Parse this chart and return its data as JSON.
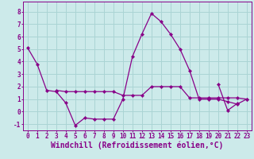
{
  "xlabel": "Windchill (Refroidissement éolien,°C)",
  "xlim": [
    -0.5,
    23.5
  ],
  "ylim": [
    -1.5,
    8.8
  ],
  "yticks": [
    -1,
    0,
    1,
    2,
    3,
    4,
    5,
    6,
    7,
    8
  ],
  "xticks": [
    0,
    1,
    2,
    3,
    4,
    5,
    6,
    7,
    8,
    9,
    10,
    11,
    12,
    13,
    14,
    15,
    16,
    17,
    18,
    19,
    20,
    21,
    22,
    23
  ],
  "background_color": "#cceaea",
  "line_color": "#880088",
  "grid_color": "#aad4d4",
  "series": [
    [
      5.1,
      3.8,
      1.7,
      1.6,
      0.7,
      -1.1,
      -0.5,
      -0.6,
      -0.6,
      -0.6,
      1.0,
      4.4,
      6.2,
      7.85,
      7.2,
      6.2,
      5.0,
      3.3,
      1.0,
      1.0,
      1.0,
      0.8,
      0.6,
      1.0
    ],
    [
      null,
      null,
      null,
      1.7,
      1.6,
      1.6,
      1.6,
      1.6,
      1.6,
      1.6,
      1.3,
      1.3,
      1.3,
      2.0,
      2.0,
      2.0,
      2.0,
      1.1,
      1.1,
      1.1,
      1.1,
      1.1,
      1.1,
      1.0
    ],
    [
      null,
      null,
      null,
      null,
      null,
      null,
      null,
      null,
      null,
      null,
      null,
      null,
      null,
      null,
      null,
      null,
      null,
      null,
      null,
      null,
      2.2,
      0.1,
      0.65,
      null
    ]
  ],
  "tick_fontsize": 5.5,
  "xlabel_fontsize": 7.0,
  "linewidth": 0.9,
  "markersize": 2.2
}
